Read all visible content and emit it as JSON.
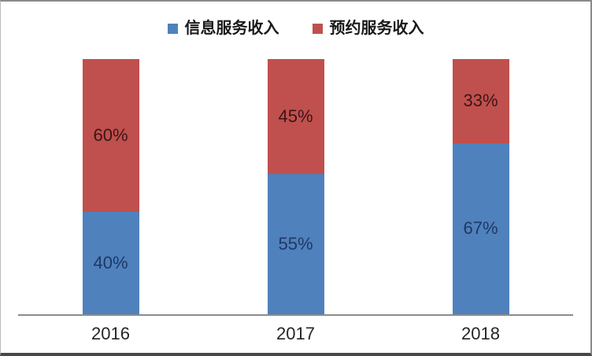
{
  "chart_data": {
    "type": "bar",
    "subtype": "stacked-100-percent-column",
    "title": "",
    "xlabel": "",
    "ylabel": "",
    "ylim": [
      0,
      100
    ],
    "grid": false,
    "legend_position": "top",
    "value_suffix": "%",
    "axis_line_color": "#8c8c8c",
    "categories": [
      "2016",
      "2017",
      "2018"
    ],
    "series": [
      {
        "id": "info-service-revenue",
        "name": "信息服务收入",
        "color": "#4F81BD",
        "label_color": "#1F3864",
        "stack_position": "bottom",
        "values": [
          40,
          55,
          67
        ]
      },
      {
        "id": "booking-service-revenue",
        "name": "预约服务收入",
        "color": "#C0504D",
        "label_color": "#3B1517",
        "stack_position": "top",
        "values": [
          60,
          45,
          33
        ]
      }
    ]
  }
}
